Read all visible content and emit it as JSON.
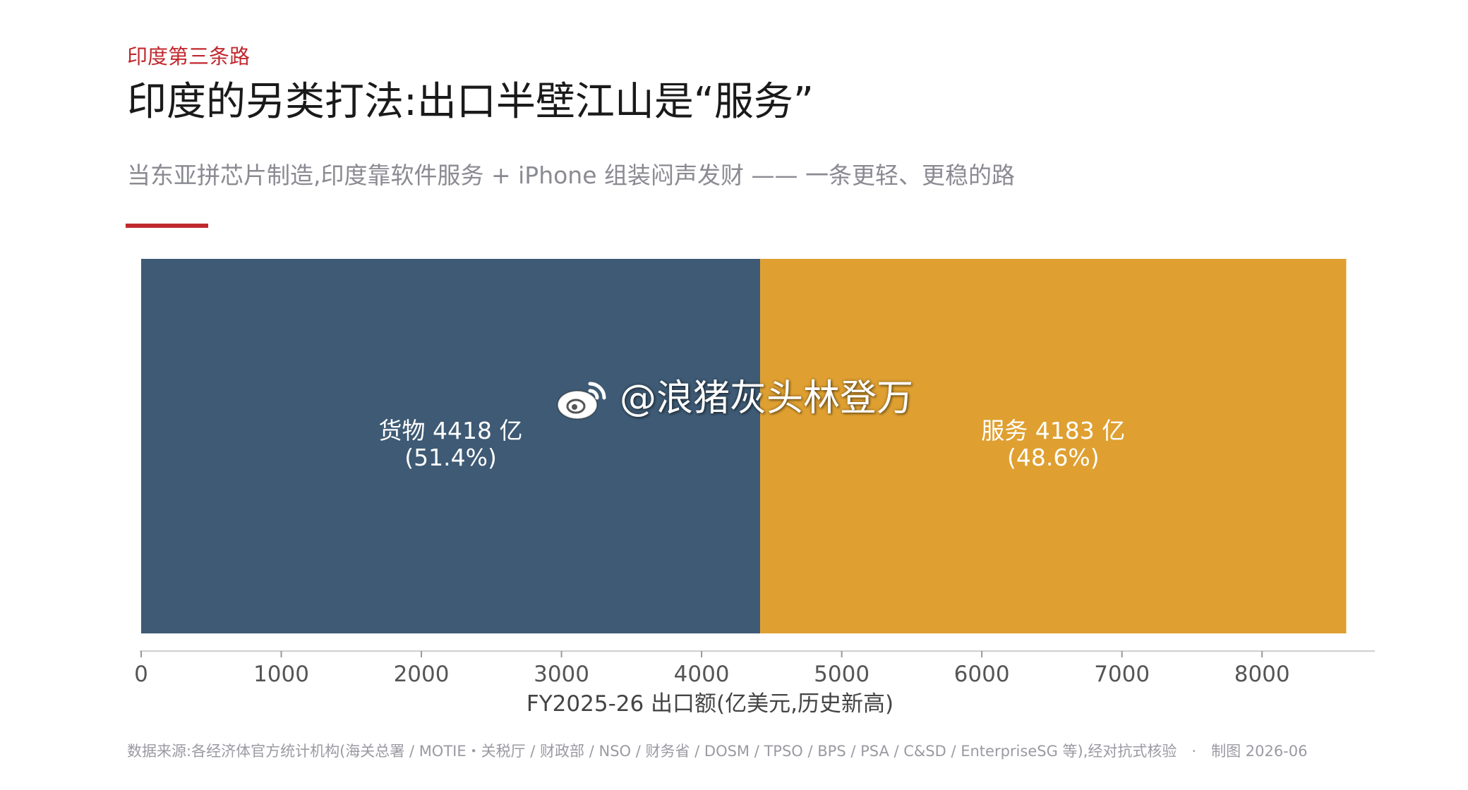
{
  "header": {
    "kicker": "印度第三条路",
    "title": "印度的另类打法:出口半壁江山是“服务”",
    "subtitle": "当东亚拼芯片制造,印度靠软件服务 + iPhone 组装闷声发财 —— 一条更轻、更稳的路"
  },
  "colors": {
    "accent": "#c0282e",
    "goods": "#3e5a74",
    "services": "#dfa031",
    "axis": "#cfcfcf"
  },
  "chart_data": {
    "type": "bar",
    "orientation": "horizontal-stacked",
    "categories": [
      "FY2025-26"
    ],
    "series": [
      {
        "name": "货物",
        "values": [
          4418
        ],
        "label_line1": "货物 4418 亿",
        "label_line2": "(51.4%)",
        "share": 51.4
      },
      {
        "name": "服务",
        "values": [
          4183
        ],
        "label_line1": "服务 4183 亿",
        "label_line2": "(48.6%)",
        "share": 48.6
      }
    ],
    "xlabel": "FY2025-26 出口额(亿美元,历史新高)",
    "xlim": [
      0,
      8800
    ],
    "xticks": [
      0,
      1000,
      2000,
      3000,
      4000,
      5000,
      6000,
      7000,
      8000
    ],
    "xtick_labels": [
      "0",
      "1000",
      "2000",
      "3000",
      "4000",
      "5000",
      "6000",
      "7000",
      "8000"
    ],
    "grid": false,
    "legend": "none"
  },
  "footer": {
    "source": "数据来源:各经济体官方统计机构(海关总署 / MOTIE・关税厅 / 财政部 / NSO / 财务省 / DOSM / TPSO / BPS / PSA / C&SD / EnterpriseSG 等),经对抗式核验　·　制图 2026-06"
  },
  "watermark": {
    "text": "@浪猪灰头林登万",
    "icon": "weibo-icon"
  }
}
